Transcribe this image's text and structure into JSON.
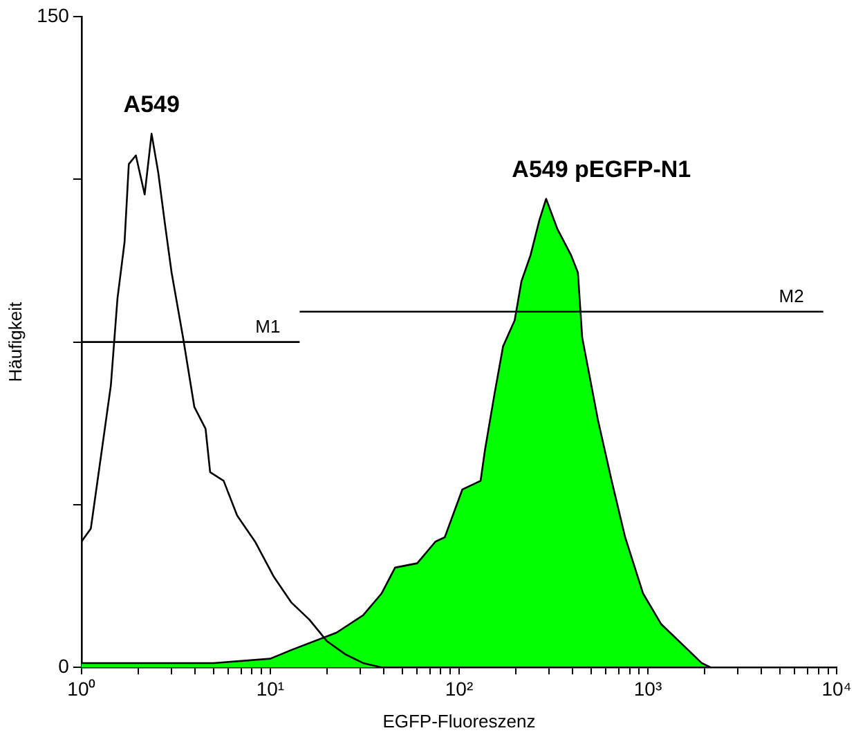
{
  "chart_data": {
    "type": "line",
    "xlabel": "EGFP-Fluoreszenz",
    "ylabel": "Häufigkeit",
    "log": "x",
    "xlim": [
      1,
      10000
    ],
    "xticks": [
      {
        "value": 1,
        "label": "10⁰"
      },
      {
        "value": 2,
        "label": null
      },
      {
        "value": 3,
        "label": null
      },
      {
        "value": 4,
        "label": null
      },
      {
        "value": 5,
        "label": null
      },
      {
        "value": 6,
        "label": null
      },
      {
        "value": 7,
        "label": null
      },
      {
        "value": 8,
        "label": null
      },
      {
        "value": 9,
        "label": null
      },
      {
        "value": 10,
        "label": "10¹"
      },
      {
        "value": 20,
        "label": null
      },
      {
        "value": 30,
        "label": null
      },
      {
        "value": 40,
        "label": null
      },
      {
        "value": 50,
        "label": null
      },
      {
        "value": 60,
        "label": null
      },
      {
        "value": 70,
        "label": null
      },
      {
        "value": 80,
        "label": null
      },
      {
        "value": 90,
        "label": null
      },
      {
        "value": 100,
        "label": "10²"
      },
      {
        "value": 200,
        "label": null
      },
      {
        "value": 300,
        "label": null
      },
      {
        "value": 400,
        "label": null
      },
      {
        "value": 500,
        "label": null
      },
      {
        "value": 600,
        "label": null
      },
      {
        "value": 700,
        "label": null
      },
      {
        "value": 800,
        "label": null
      },
      {
        "value": 900,
        "label": null
      },
      {
        "value": 1000,
        "label": "10³"
      },
      {
        "value": 2000,
        "label": null
      },
      {
        "value": 3000,
        "label": null
      },
      {
        "value": 4000,
        "label": null
      },
      {
        "value": 5000,
        "label": null
      },
      {
        "value": 6000,
        "label": null
      },
      {
        "value": 7000,
        "label": null
      },
      {
        "value": 8000,
        "label": null
      },
      {
        "value": 9000,
        "label": null
      },
      {
        "value": 10000,
        "label": "10⁴"
      }
    ],
    "ylim": [
      0,
      150
    ],
    "yticks": [
      0,
      {
        "value": 37.5,
        "label": null
      },
      {
        "value": 75,
        "label": null
      },
      {
        "value": 112.5,
        "label": null
      },
      150
    ],
    "grid": false,
    "legend": false,
    "marker": "none",
    "line_style": "solid",
    "series": [
      {
        "name": "A549 pEGFP-N1",
        "type": "area",
        "color": "#00ff00",
        "x": [
          1,
          2,
          5,
          10,
          12.9,
          22.4,
          31,
          38.8,
          45.8,
          60,
          75,
          84,
          104,
          130,
          137,
          154,
          171,
          197,
          214,
          239,
          266,
          289,
          332,
          392,
          426,
          449,
          544,
          643,
          758,
          944,
          1175,
          1549,
          1928,
          2150,
          10000
        ],
        "values": [
          1,
          1,
          1,
          2,
          4,
          8,
          12,
          17,
          23,
          24,
          29,
          30,
          41,
          43,
          50,
          63,
          74,
          80,
          89,
          95,
          103,
          108,
          101,
          95,
          91,
          76,
          57,
          43,
          30,
          17,
          10,
          5,
          1,
          0,
          0
        ]
      },
      {
        "name": "A549",
        "type": "line",
        "color": "#000000",
        "x": [
          1,
          1.12,
          1.28,
          1.43,
          1.55,
          1.69,
          1.78,
          1.94,
          2.16,
          2.35,
          2.55,
          2.77,
          3.0,
          3.45,
          3.96,
          4.54,
          4.8,
          5.66,
          6.67,
          8.3,
          10.4,
          12.9,
          16.1,
          20,
          25,
          31,
          38.8,
          10000
        ],
        "values": [
          29,
          32,
          50,
          65,
          85,
          98,
          116,
          118,
          109,
          123,
          114,
          102,
          91,
          76,
          60,
          55,
          45,
          43,
          35,
          29,
          21,
          15,
          11,
          6,
          3,
          1,
          0,
          0
        ]
      },
      {
        "name": "M1",
        "type": "line",
        "color": "#000000",
        "x": [
          1,
          14.3
        ],
        "values": [
          75,
          75
        ]
      },
      {
        "name": "M2",
        "type": "line",
        "color": "#000000",
        "x": [
          14.3,
          8500
        ],
        "values": [
          82,
          82
        ]
      }
    ]
  }
}
